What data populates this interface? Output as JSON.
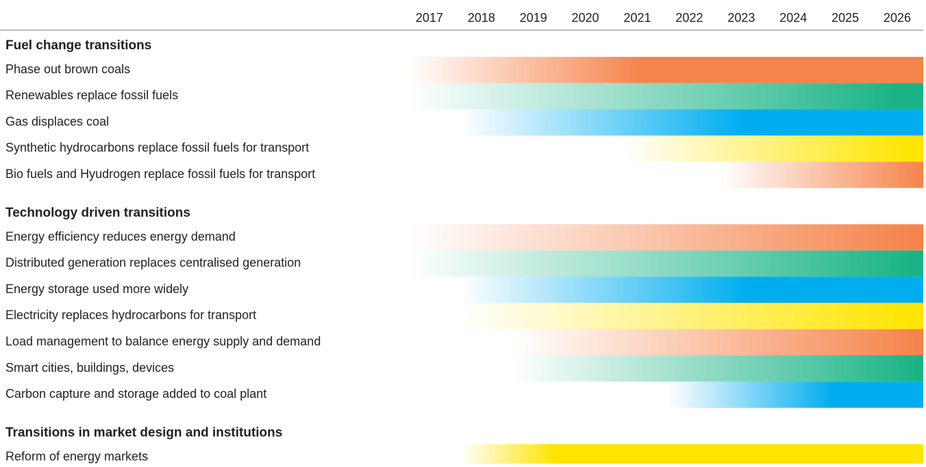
{
  "chart_data": {
    "type": "timeline",
    "xlim": [
      2016.5,
      2026.5
    ],
    "xticks": [
      2017,
      2018,
      2019,
      2020,
      2021,
      2022,
      2023,
      2024,
      2025,
      2026
    ],
    "groups": [
      {
        "title": "Fuel change transitions",
        "items": [
          {
            "label": "Phase out brown coals",
            "start": 2016.6,
            "full": 2021.1,
            "end": 2026.5,
            "color": "#f5844c"
          },
          {
            "label": "Renewables replace fossil fuels",
            "start": 2016.6,
            "full": 2026.0,
            "end": 2026.5,
            "color": "#1ab386"
          },
          {
            "label": "Gas displaces coal",
            "start": 2017.6,
            "full": 2023.0,
            "end": 2026.5,
            "color": "#00aeef"
          },
          {
            "label": "Synthetic hydrocarbons replace fossil fuels for transport",
            "start": 2020.7,
            "full": 2026.3,
            "end": 2026.5,
            "color": "#ffe500"
          },
          {
            "label": "Bio fuels and Hyudrogen replace fossil fuels for transport",
            "start": 2022.6,
            "full": 2026.5,
            "end": 2026.5,
            "color": "#f5844c"
          }
        ]
      },
      {
        "title": "Technology driven transitions",
        "items": [
          {
            "label": "Energy efficiency reduces energy demand",
            "start": 2016.6,
            "full": 2026.3,
            "end": 2026.5,
            "color": "#f5844c"
          },
          {
            "label": "Distributed generation replaces centralised generation",
            "start": 2016.6,
            "full": 2026.3,
            "end": 2026.5,
            "color": "#1ab386"
          },
          {
            "label": "Energy storage used more widely",
            "start": 2017.6,
            "full": 2023.1,
            "end": 2026.5,
            "color": "#00aeef"
          },
          {
            "label": "Electricity replaces hydrocarbons for transport",
            "start": 2017.6,
            "full": 2026.3,
            "end": 2026.5,
            "color": "#ffe500"
          },
          {
            "label": "Load management to balance energy supply and demand",
            "start": 2018.6,
            "full": 2026.4,
            "end": 2026.5,
            "color": "#f5844c"
          },
          {
            "label": "Smart cities, buildings, devices",
            "start": 2018.6,
            "full": 2026.4,
            "end": 2026.5,
            "color": "#1ab386"
          },
          {
            "label": "Carbon capture and storage added to coal plant",
            "start": 2021.6,
            "full": 2024.75,
            "end": 2026.5,
            "color": "#00aeef"
          }
        ]
      },
      {
        "title": "Transitions in market design and institutions",
        "items": [
          {
            "label": "Reform of energy markets",
            "start": 2017.6,
            "full": 2019.4,
            "end": 2026.5,
            "color": "#ffe500"
          }
        ]
      }
    ]
  }
}
